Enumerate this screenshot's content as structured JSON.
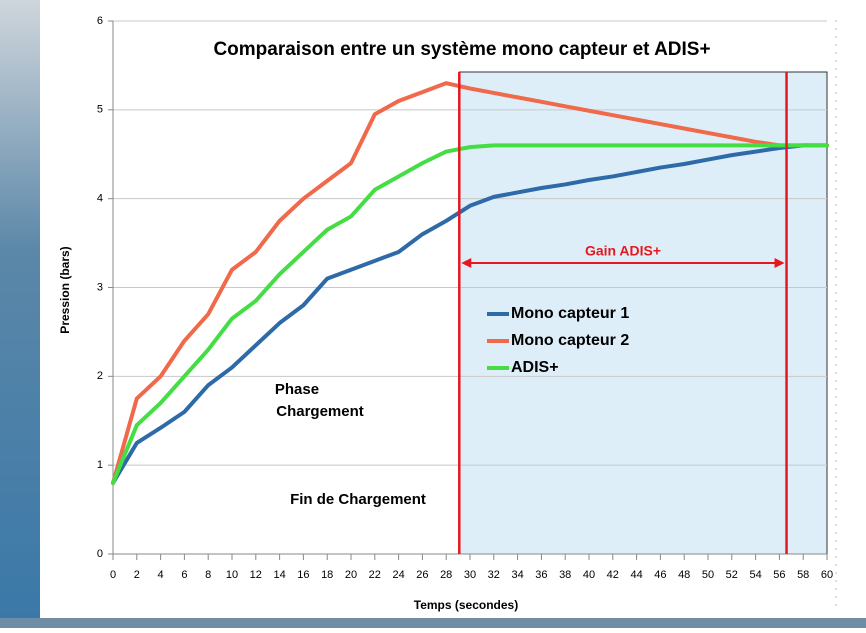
{
  "chart_data": {
    "type": "line",
    "title": "Comparaison entre un système mono capteur et ADIS+",
    "x_label": "Temps (secondes)",
    "y_label": "Pression (bars)",
    "x": [
      0,
      2,
      4,
      6,
      8,
      10,
      12,
      14,
      16,
      18,
      20,
      22,
      24,
      26,
      28,
      30,
      32,
      34,
      36,
      38,
      40,
      42,
      44,
      46,
      48,
      50,
      52,
      54,
      56,
      58,
      60
    ],
    "series": [
      {
        "name": "Mono capteur 1",
        "color": "#2e6aa8",
        "values": [
          0.8,
          1.25,
          1.42,
          1.6,
          1.9,
          2.1,
          2.35,
          2.6,
          2.8,
          3.1,
          3.2,
          3.3,
          3.4,
          3.6,
          3.75,
          3.92,
          4.02,
          4.07,
          4.12,
          4.16,
          4.21,
          4.25,
          4.3,
          4.35,
          4.39,
          4.44,
          4.49,
          4.53,
          4.57,
          4.6,
          4.6
        ]
      },
      {
        "name": "Mono capteur 2",
        "color": "#f0694a",
        "values": [
          0.8,
          1.75,
          2.0,
          2.4,
          2.7,
          3.2,
          3.4,
          3.75,
          4.0,
          4.2,
          4.4,
          4.95,
          5.1,
          5.2,
          5.3,
          5.24,
          5.19,
          5.14,
          5.09,
          5.04,
          4.99,
          4.94,
          4.89,
          4.84,
          4.79,
          4.74,
          4.69,
          4.64,
          4.6,
          4.6,
          4.6
        ]
      },
      {
        "name": "ADIS+",
        "color": "#44dd44",
        "values": [
          0.8,
          1.45,
          1.7,
          2.0,
          2.3,
          2.65,
          2.85,
          3.15,
          3.4,
          3.65,
          3.8,
          4.1,
          4.25,
          4.4,
          4.53,
          4.58,
          4.6,
          4.6,
          4.6,
          4.6,
          4.6,
          4.6,
          4.6,
          4.6,
          4.6,
          4.6,
          4.6,
          4.6,
          4.6,
          4.6,
          4.6
        ]
      }
    ],
    "xlim": [
      0,
      60
    ],
    "ylim": [
      0,
      6
    ],
    "xticks": [
      0,
      2,
      4,
      6,
      8,
      10,
      12,
      14,
      16,
      18,
      20,
      22,
      24,
      26,
      28,
      30,
      32,
      34,
      36,
      38,
      40,
      42,
      44,
      46,
      48,
      50,
      52,
      54,
      56,
      58,
      60
    ],
    "yticks": [
      0,
      1,
      2,
      3,
      4,
      5,
      6
    ],
    "grid": true,
    "vlines": [
      29.1,
      56.6
    ],
    "annotations": [
      "Gain ADIS+",
      "Phase",
      "Chargement",
      "Fin de Chargement"
    ]
  }
}
